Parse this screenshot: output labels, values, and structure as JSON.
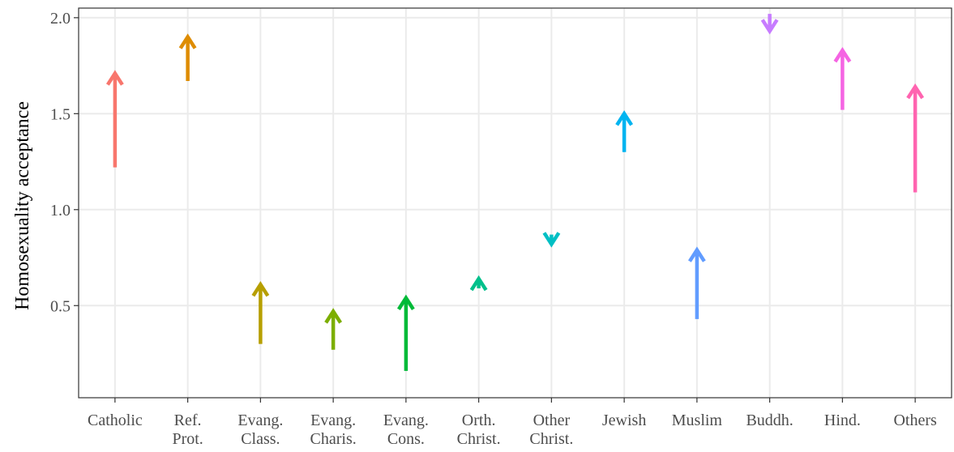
{
  "chart_data": {
    "type": "arrow",
    "title": "",
    "xlabel": "",
    "ylabel": "Homosexuality acceptance",
    "ylim": [
      0.02,
      2.05
    ],
    "yticks": [
      "0.5",
      "1.0",
      "1.5",
      "2.0"
    ],
    "grid": true,
    "categories": [
      [
        "Catholic"
      ],
      [
        "Ref.",
        "Prot."
      ],
      [
        "Evang.",
        "Class."
      ],
      [
        "Evang.",
        "Charis."
      ],
      [
        "Evang.",
        "Cons."
      ],
      [
        "Orth.",
        "Christ."
      ],
      [
        "Other",
        "Christ."
      ],
      [
        "Jewish"
      ],
      [
        "Muslim"
      ],
      [
        "Buddh."
      ],
      [
        "Hind."
      ],
      [
        "Others"
      ]
    ],
    "series": [
      {
        "start": 1.22,
        "end": 1.71
      },
      {
        "start": 1.67,
        "end": 1.9
      },
      {
        "start": 0.3,
        "end": 0.61
      },
      {
        "start": 0.27,
        "end": 0.47
      },
      {
        "start": 0.16,
        "end": 0.54
      },
      {
        "start": 0.59,
        "end": 0.64
      },
      {
        "start": 0.87,
        "end": 0.82
      },
      {
        "start": 1.3,
        "end": 1.5
      },
      {
        "start": 0.43,
        "end": 0.79
      },
      {
        "start": 2.02,
        "end": 1.93
      },
      {
        "start": 1.52,
        "end": 1.83
      },
      {
        "start": 1.09,
        "end": 1.64
      }
    ],
    "colors": [
      "#F8766D",
      "#DE8C00",
      "#B79F00",
      "#7CAE00",
      "#00BA38",
      "#00C08B",
      "#00BFC4",
      "#00B4F0",
      "#619CFF",
      "#C77CFF",
      "#F564E3",
      "#FF64B0"
    ]
  }
}
